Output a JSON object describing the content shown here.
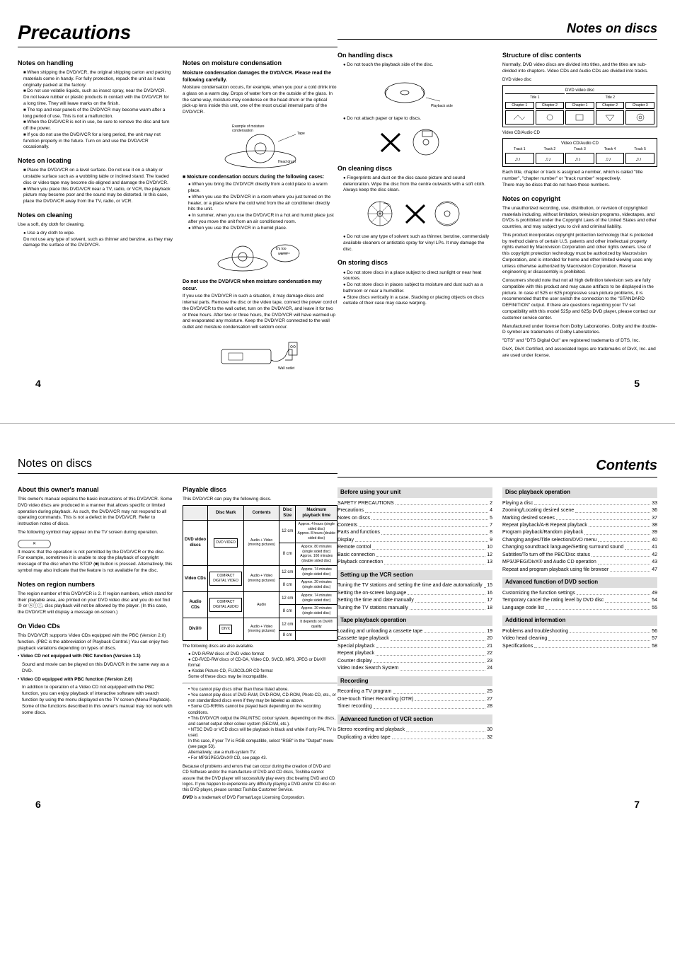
{
  "page45": {
    "title_left": "Precautions",
    "title_right": "Notes on discs",
    "pagenum_left": "4",
    "pagenum_right": "5",
    "handling_h": "Notes on handling",
    "handling_items": [
      "When shipping the DVD/VCR, the original shipping carton and packing materials come in handy. For fully protection, repack the unit as it was originally packed at the factory.",
      "Do not use volatile liquids, such as insect spray, near the DVD/VCR. Do not leave rubber or plastic products in contact with the DVD/VCR for a long time. They will leave marks on the finish.",
      "The top and rear panels of the DVD/VCR may become warm after a long period of use. This is not a malfunction.",
      "When the DVD/VCR is not in use, be sure to remove the disc and turn off the power.",
      "If you do not use the DVD/VCR for a long period, the unit may not function properly in the future. Turn on and use the DVD/VCR occasionally."
    ],
    "locating_h": "Notes on locating",
    "locating_items": [
      "Place the DVD/VCR on a level surface. Do not use it on a shaky or unstable surface such as a wobbling table or inclined stand. The loaded disc or video tape may become dis-aligned and damage the DVD/VCR.",
      "When you place this DVD/VCR near a TV, radio, or VCR, the playback picture may become poor and the sound may be distorted. In this case, place the DVD/VCR away from the TV, radio, or VCR."
    ],
    "cleaning_h": "Notes on cleaning",
    "cleaning_p": "Use a soft, dry cloth for cleaning.",
    "cleaning_items": [
      "Use a dry cloth to wipe.\nDo not use any type of solvent, such as thinner and benzine, as they may damage the surface of the DVD/VCR."
    ],
    "moisture_h": "Notes on moisture condensation",
    "moisture_sub1": "Moisture condensation damages the DVD/VCR. Please read the following carefully.",
    "moisture_p1": "Moisture condensation occurs, for example, when you pour a cold drink into a glass on a warm day. Drops of water form on the outside of the glass. In the same way, moisture may condense on the head drum or the optical pick-up lens inside this unit, one of the most crucial internal parts of the DVD/VCR.",
    "moisture_img1_cap": "Example of moisture condensation",
    "moisture_sub2": "Moisture condensation occurs during the following cases:",
    "moisture_items": [
      "When you bring the DVD/VCR directly from a cold place to a warm place.",
      "When you use the DVD/VCR in a room where you just turned on the heater, or a place where the cold wind from the air conditioner directly hits the unit.",
      "In summer, when you use the DVD/VCR in a hot and humid place just after you move the unit from an air conditioned room.",
      "When you use the DVD/VCR in a humid place."
    ],
    "moisture_sub3": "Do not use the DVD/VCR when moisture condensation may occur.",
    "moisture_p2": "If you use the DVD/VCR in such a situation, it may damage discs and internal parts. Remove the disc or the video tape, connect the power cord of the DVD/VCR to the wall outlet, turn on the DVD/VCR, and leave it for two or three hours. After two or three hours, the DVD/VCR will have warmed up and evaporated any moisture. Keep the DVD/VCR connected to the wall outlet and moisture condensation will seldom occur.",
    "onhandling_h": "On handling discs",
    "onhandling_items": [
      "Do not touch the playback side of the disc."
    ],
    "onhandling_cap": "Playback side",
    "onhandling_items2": [
      "Do not attach paper or tape to discs."
    ],
    "oncleaning_h": "On cleaning discs",
    "oncleaning_items": [
      "Fingerprints and dust on the disc cause picture and sound deterioration. Wipe the disc from the centre outwards with a soft cloth. Always keep the disc clean."
    ],
    "oncleaning_items2": [
      "Do not use any type of solvent such as thinner, benzine, commercially available cleaners or antistatic spray for vinyl LPs. It may damage the disc."
    ],
    "onstoring_h": "On storing discs",
    "onstoring_items": [
      "Do not store discs in a place subject to direct sunlight or near heat sources.",
      "Do not store discs in places subject to moisture and dust such as a bathroom or near a humidifier.",
      "Store discs vertically in a case. Stacking or placing objects on discs outside of their case may cause warping."
    ],
    "struct_h": "Structure of disc contents",
    "struct_p1": "Normally, DVD video discs are divided into titles, and the titles are sub-divided into chapters. Video CDs and Audio CDs are divided into tracks.",
    "struct_dvd_label": "DVD video disc",
    "struct_title1": "Title 1",
    "struct_title2": "Title 2",
    "struct_chap": [
      "Chapter 1",
      "Chapter 2",
      "Chapter 1",
      "Chapter 2",
      "Chapter 3"
    ],
    "struct_cd_label": "Video CD/Audio CD",
    "struct_tracks": [
      "Track 1",
      "Track 2",
      "Track 3",
      "Track 4",
      "Track 5"
    ],
    "struct_p2": "Each title, chapter or track is assigned a number, which is called \"title number\", \"chapter number\" or \"track number\" respectively.\nThere may be discs that do not have these numbers.",
    "copyright_h": "Notes on copyright",
    "copyright_p1": "The unauthorized recording, use, distribution, or revision of copyrighted materials including, without limitation, television programs, videotapes, and DVDs is prohibited under the Copyright Laws of the United States and other countries, and may subject you to civil and criminal liability.",
    "copyright_p2": "This product incorporates copyright protection technology that is protected by method claims of certain U.S. patents and other intellectual property rights owned by Macrovision Corporation and other rights owners. Use of this copyright protection technology must be authorized by Macrovision Corporation, and is intended for home and other limited viewing uses only unless otherwise authorized by Macrovision Corporation. Reverse engineering or disassembly is prohibited.",
    "copyright_p3": "Consumers should note that not all high definition television sets are fully compatible with this product and may cause artifacts to be displayed in the picture. In case of 525 or 625 progressive scan picture problems, it is recommended that the user switch the connection to the \"STANDARD DEFINITION\" output. If there are questions regarding your TV set compatibility with this model 525p and 625p DVD player, please contact our customer service center.",
    "copyright_p4": "Manufactured under license from Dolby Laboratories. Dolby and the double-D symbol are trademarks of Dolby Laboratories.",
    "copyright_p5": "\"DTS\" and \"DTS Digital Out\" are registered trademarks of DTS, Inc.",
    "copyright_p6": "DivX, DivX Certified, and associated logos are trademarks of DivX, Inc. and are used under license."
  },
  "page67": {
    "title_left": "Notes on discs",
    "title_right": "Contents",
    "pagenum_left": "6",
    "pagenum_right": "7",
    "about_h": "About this owner's manual",
    "about_p1": "This owner's manual explains the basic instructions of this DVD/VCR. Some DVD video discs are produced in a manner that allows specific or limited operation during playback. As such, the DVD/VCR may not respond to all operating commands. This is not a defect in the DVD/VCR. Refer to instruction notes of discs.",
    "about_p2": "The following symbol may appear on the TV screen during operation.",
    "about_xbox": "✕",
    "about_p3": "It means that the operation is not permitted by the DVD/VCR or the disc.\nFor example, sometimes it is unable to stop the playback of copyright message of the disc when the STOP (■) button is pressed. Alternatively, this symbol may also indicate that the feature is not available for the disc.",
    "region_h": "Notes on region numbers",
    "region_p": "The region number of this DVD/VCR is 2. If region numbers, which stand for their playable area, are printed on your DVD video disc and you do not find ② or ⓐⓛⓛ, disc playback will not be allowed by the player. (In this case, the DVD/VCR will display a message on-screen.)",
    "videocd_h": "On Video CDs",
    "videocd_p1": "This DVD/VCR supports Video CDs equipped with the PBC (Version 2.0) function. (PBC is the abbreviation of Playback Control.) You can enjoy two playback variations depending on types of discs.",
    "videocd_b1": "Video CD not equipped with PBC function (Version 1.1)",
    "videocd_b1p": "Sound and movie can be played on this DVD/VCR in the same way as a DVD.",
    "videocd_b2": "Video CD equipped with PBC function (Version 2.0)",
    "videocd_b2p": "In addition to operation of a Video CD not equipped with the PBC function, you can enjoy playback of interactive software with search function by using the menu displayed on the TV screen (Menu Playback). Some of the functions described in this owner's manual may not work with some discs.",
    "playable_h": "Playable discs",
    "playable_p": "This DVD/VCR can play the following discs.",
    "table_headers": [
      "",
      "Disc Mark",
      "Contents",
      "Disc Size",
      "Maximum playback time"
    ],
    "table_rows": [
      {
        "type": "DVD video discs",
        "mark": "DVD VIDEO",
        "contents": "Audio + Video (moving pictures)",
        "rows": [
          {
            "size": "12 cm",
            "time": "Approx. 4 hours (single sided disc)\nApprox. 8 hours (double sided disc)"
          },
          {
            "size": "8 cm",
            "time": "Approx. 80 minutes (single sided disc)\nApprox. 160 minutes (double sided disc)"
          }
        ]
      },
      {
        "type": "Video CDs",
        "mark": "COMPACT DIGITAL VIDEO",
        "contents": "Audio + Video (moving pictures)",
        "rows": [
          {
            "size": "12 cm",
            "time": "Approx. 74 minutes (single sided disc)"
          },
          {
            "size": "8 cm",
            "time": "Approx. 20 minutes (single sided disc)"
          }
        ]
      },
      {
        "type": "Audio CDs",
        "mark": "COMPACT DIGITAL AUDIO",
        "contents": "Audio",
        "rows": [
          {
            "size": "12 cm",
            "time": "Approx. 74 minutes (single sided disc)"
          },
          {
            "size": "8 cm",
            "time": "Approx. 20 minutes (single sided disc)"
          }
        ]
      },
      {
        "type": "DivX®",
        "mark": "DIVX",
        "contents": "Audio + Video (moving pictures)",
        "rows": [
          {
            "size": "12 cm",
            "time": "It depends on DivX® quality"
          },
          {
            "size": "8 cm",
            "time": ""
          }
        ]
      }
    ],
    "playable_notes_p": "The following discs are also available.",
    "playable_notes": [
      "DVD-R/RW discs of DVD video format",
      "CD-R/CD-RW discs of CD-DA, Video CD, SVCD, MP3, JPEG or DivX® format",
      "Kodak Picture CD, FUJICOLOR CD format\nSome of these discs may be incompatible."
    ],
    "playable_extra": [
      "You cannot play discs other than those listed above.",
      "You cannot play discs of DVD-RAM, DVD-ROM, CD-ROM, Photo CD, etc., or non standardized discs even if they may be labeled as above.",
      "Some CD-R/RWs cannot be played back depending on the recording conditions.",
      "This DVD/VCR output the PAL/NTSC colour system, depending on the discs, and cannot output other colour system (SECAM, etc.).",
      "NTSC DVD or VCD discs will be playback in black and white if only PAL TV is used.\nIn this case, if your TV is RGB compatible, select \"RGB\" in the \"Output\" menu (see page 53).\nAlternatively, use a multi-system TV.",
      "For MP3/JPEG/DivX® CD, see page 43."
    ],
    "playable_p2": "Because of problems and errors that can occur during the creation of DVD and CD Software and/or the manufacture of DVD and CD discs, Toshiba cannot assure that the DVD player will successfully play every disc bearing DVD and CD logos. If you happen to experience any difficulty playing a DVD and/or CD disc on this DVD player, please contact Toshiba Customer Service.",
    "playable_p3": "𝘿𝙑𝘿 is a trademark of DVD Format/Logo Licensing Corporation.",
    "toc": [
      {
        "section": "Before using your unit",
        "items": [
          {
            "l": "SAFETY PRECAUTIONS",
            "p": "2"
          },
          {
            "l": "Precautions",
            "p": "4"
          },
          {
            "l": "Notes on discs",
            "p": "5"
          },
          {
            "l": "Contents",
            "p": "7"
          },
          {
            "l": "Parts and functions",
            "p": "8"
          },
          {
            "l": "Display",
            "p": "9"
          },
          {
            "l": "Remote control",
            "p": "10"
          },
          {
            "l": "Basic connection",
            "p": "12"
          },
          {
            "l": "Playback connection",
            "p": "13"
          }
        ]
      },
      {
        "section": "Setting up the VCR section",
        "items": [
          {
            "l": "Tuning the TV stations and setting the time and date automatically",
            "p": "15"
          },
          {
            "l": "Setting the on-screen language",
            "p": "16"
          },
          {
            "l": "Setting the time and date manually",
            "p": "17"
          },
          {
            "l": "Tuning the TV stations manually",
            "p": "18"
          }
        ]
      },
      {
        "section": "Tape playback operation",
        "items": [
          {
            "l": "Loading and unloading a cassette tape",
            "p": "19"
          },
          {
            "l": "Cassette tape playback",
            "p": "20"
          },
          {
            "l": "Special playback",
            "p": "21"
          },
          {
            "l": "Repeat playback",
            "p": "22"
          },
          {
            "l": "Counter display",
            "p": "23"
          },
          {
            "l": "Video Index Search System",
            "p": "24"
          }
        ]
      },
      {
        "section": "Recording",
        "items": [
          {
            "l": "Recording a TV program",
            "p": "25"
          },
          {
            "l": "One-touch Timer Recording (OTR)",
            "p": "27"
          },
          {
            "l": "Timer recording",
            "p": "28"
          }
        ]
      },
      {
        "section": "Advanced function of VCR section",
        "items": [
          {
            "l": "Stereo recording and playback",
            "p": "30"
          },
          {
            "l": "Duplicating a video tape",
            "p": "32"
          }
        ]
      }
    ],
    "toc2": [
      {
        "section": "Disc playback operation",
        "items": [
          {
            "l": "Playing a disc",
            "p": "33"
          },
          {
            "l": "Zooming/Locating desired scene",
            "p": "36"
          },
          {
            "l": "Marking desired scenes",
            "p": "37"
          },
          {
            "l": "Repeat playback/A-B Repeat playback",
            "p": "38"
          },
          {
            "l": "Program playback/Random playback",
            "p": "39"
          },
          {
            "l": "Changing angles/Title selection/DVD menu",
            "p": "40"
          },
          {
            "l": "Changing soundtrack language/Setting surround sound",
            "p": "41"
          },
          {
            "l": "Subtitles/To turn off the PBC/Disc status",
            "p": "42"
          },
          {
            "l": "MP3/JPEG/DivX® and Audio CD operation",
            "p": "43"
          },
          {
            "l": "Repeat and program playback using file browser",
            "p": "47"
          }
        ]
      },
      {
        "section": "Advanced function of DVD section",
        "items": [
          {
            "l": "Customizing the function settings",
            "p": "49"
          },
          {
            "l": "Temporary cancel the rating level by DVD disc",
            "p": "54"
          },
          {
            "l": "Language code list",
            "p": "55"
          }
        ]
      },
      {
        "section": "Additional information",
        "items": [
          {
            "l": "Problems and troubleshooting",
            "p": "56"
          },
          {
            "l": "Video head cleaning",
            "p": "57"
          },
          {
            "l": "Specifications",
            "p": "58"
          }
        ]
      }
    ]
  }
}
